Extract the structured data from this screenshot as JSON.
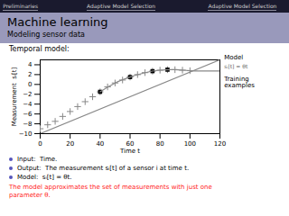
{
  "chart_data": {
    "type": "scatter",
    "title": "Machine learning",
    "subtitle": "Modeling sensor data",
    "header": [
      "Preliminaries",
      "Adaptive Model Selection",
      "Adaptive Model Selection"
    ],
    "section_title": "Temporal model:",
    "bullets": [
      "Input:  Time.",
      "Output:  The measurement sᵢ[t] of a sensor i at time t.",
      "Model:  sᵢ[t] = θt."
    ],
    "footer": "The model approximates the set of measurements with just one\nparameter θ.",
    "xlabel": "Time t",
    "ylabel": "Measurement  sᵢ[t]",
    "xlim": [
      0,
      120
    ],
    "ylim": [
      -10,
      5
    ],
    "xticks": [
      0,
      20,
      40,
      60,
      80,
      100,
      120
    ],
    "yticks": [
      -10,
      -8,
      -6,
      -4,
      -2,
      0,
      2,
      4
    ],
    "series": [
      {
        "type": "scatter",
        "color": "#888888",
        "marker": "plus",
        "x": [
          0,
          5,
          10,
          15,
          20,
          25,
          30,
          35,
          40,
          45,
          50,
          55,
          60,
          65,
          70,
          75,
          80,
          85,
          90,
          95,
          100
        ],
        "values": [
          -9.0,
          -8.2,
          -7.5,
          -6.5,
          -5.5,
          -4.5,
          -3.5,
          -2.5,
          -1.5,
          -0.5,
          0.3,
          0.9,
          1.5,
          2.0,
          2.4,
          2.7,
          2.9,
          3.0,
          3.0,
          2.9,
          2.8
        ]
      },
      {
        "type": "scatter",
        "color": "black",
        "marker": "square",
        "x": [
          40,
          60,
          75,
          85
        ],
        "values": [
          -1.5,
          1.5,
          2.7,
          3.0
        ]
      },
      {
        "type": "line",
        "color": "#888888",
        "line_style": "solid",
        "x": [
          0,
          120
        ],
        "values": [
          -10,
          5
        ]
      },
      {
        "type": "line",
        "color": "#888888",
        "line_style": "smooth",
        "x": [
          40,
          50,
          60,
          70,
          80,
          90,
          100,
          110,
          120
        ],
        "values": [
          -1.5,
          0.3,
          1.5,
          2.4,
          2.9,
          3.0,
          2.8,
          2.75,
          2.72
        ]
      }
    ],
    "annotations": [
      {
        "text": "Model",
        "x": 118,
        "y": 4.8
      },
      {
        "text": "sᵢ[t] = θt"
      },
      {
        "text": "Training\nexamples",
        "x": 118,
        "y": 2.72
      }
    ]
  }
}
